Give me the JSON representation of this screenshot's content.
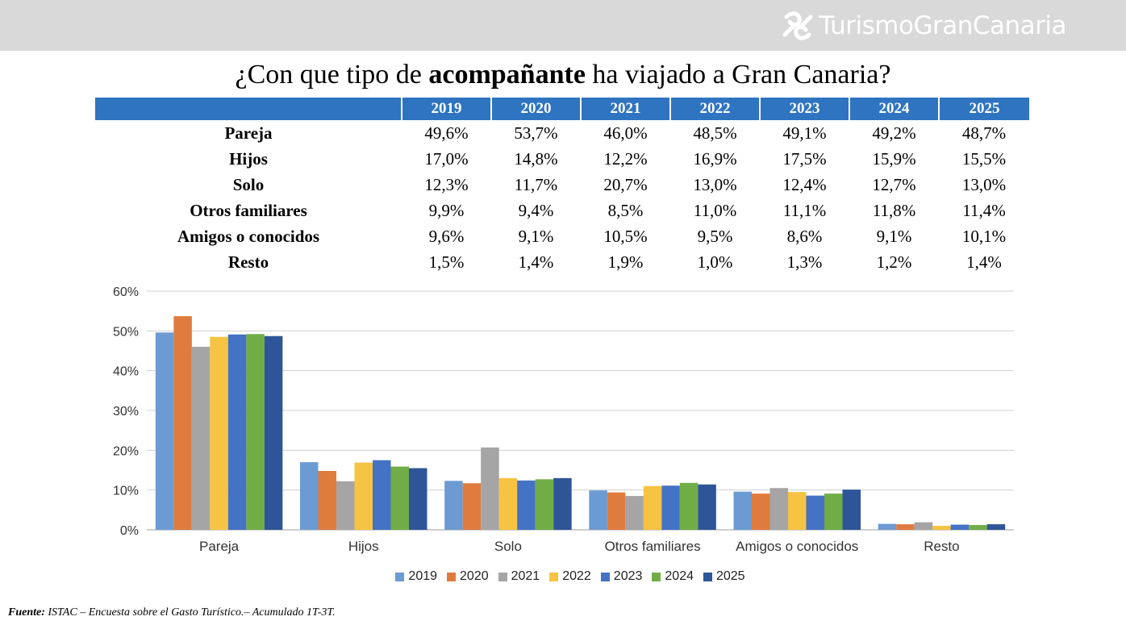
{
  "header": {
    "brand_name": "TurismoGranCanaria"
  },
  "title": {
    "pre": "¿Con que tipo de ",
    "bold": "acompañante",
    "post": " ha viajado a Gran Canaria?"
  },
  "years": [
    "2019",
    "2020",
    "2021",
    "2022",
    "2023",
    "2024",
    "2025"
  ],
  "table_rows": [
    {
      "label": "Pareja",
      "cells": [
        "49,6%",
        "53,7%",
        "46,0%",
        "48,5%",
        "49,1%",
        "49,2%",
        "48,7%"
      ]
    },
    {
      "label": "Hijos",
      "cells": [
        "17,0%",
        "14,8%",
        "12,2%",
        "16,9%",
        "17,5%",
        "15,9%",
        "15,5%"
      ]
    },
    {
      "label": "Solo",
      "cells": [
        "12,3%",
        "11,7%",
        "20,7%",
        "13,0%",
        "12,4%",
        "12,7%",
        "13,0%"
      ]
    },
    {
      "label": "Otros familiares",
      "cells": [
        "9,9%",
        "9,4%",
        "8,5%",
        "11,0%",
        "11,1%",
        "11,8%",
        "11,4%"
      ]
    },
    {
      "label": "Amigos o conocidos",
      "cells": [
        "9,6%",
        "9,1%",
        "10,5%",
        "9,5%",
        "8,6%",
        "9,1%",
        "10,1%"
      ]
    },
    {
      "label": "Resto",
      "cells": [
        "1,5%",
        "1,4%",
        "1,9%",
        "1,0%",
        "1,3%",
        "1,2%",
        "1,4%"
      ]
    }
  ],
  "chart_data": {
    "type": "bar",
    "title": "¿Con que tipo de acompañante ha viajado a Gran Canaria?",
    "xlabel": "",
    "ylabel": "",
    "ylim": [
      0,
      60
    ],
    "yticks": [
      0,
      10,
      20,
      30,
      40,
      50,
      60
    ],
    "ytick_labels": [
      "0%",
      "10%",
      "20%",
      "30%",
      "40%",
      "50%",
      "60%"
    ],
    "grid": true,
    "legend_position": "bottom",
    "categories": [
      "Pareja",
      "Hijos",
      "Solo",
      "Otros familiares",
      "Amigos o conocidos",
      "Resto"
    ],
    "series": [
      {
        "name": "2019",
        "color": "#6b9bd2",
        "values": [
          49.6,
          17.0,
          12.3,
          9.9,
          9.6,
          1.5
        ]
      },
      {
        "name": "2020",
        "color": "#e07b3e",
        "values": [
          53.7,
          14.8,
          11.7,
          9.4,
          9.1,
          1.4
        ]
      },
      {
        "name": "2021",
        "color": "#a5a5a5",
        "values": [
          46.0,
          12.2,
          20.7,
          8.5,
          10.5,
          1.9
        ]
      },
      {
        "name": "2022",
        "color": "#f6c342",
        "values": [
          48.5,
          16.9,
          13.0,
          11.0,
          9.5,
          1.0
        ]
      },
      {
        "name": "2023",
        "color": "#4472c4",
        "values": [
          49.1,
          17.5,
          12.4,
          11.1,
          8.6,
          1.3
        ]
      },
      {
        "name": "2024",
        "color": "#70ad47",
        "values": [
          49.2,
          15.9,
          12.7,
          11.8,
          9.1,
          1.2
        ]
      },
      {
        "name": "2025",
        "color": "#2e5597",
        "values": [
          48.7,
          15.5,
          13.0,
          11.4,
          10.1,
          1.4
        ]
      }
    ]
  },
  "colors": {
    "header_bar": "#d9d9d9",
    "table_header": "#2f74c0",
    "gridline": "#d0d0d0"
  },
  "footer": {
    "source_label": "Fuente:",
    "source_text": " ISTAC – Encuesta sobre el Gasto Turístico.– Acumulado 1T-3T."
  }
}
